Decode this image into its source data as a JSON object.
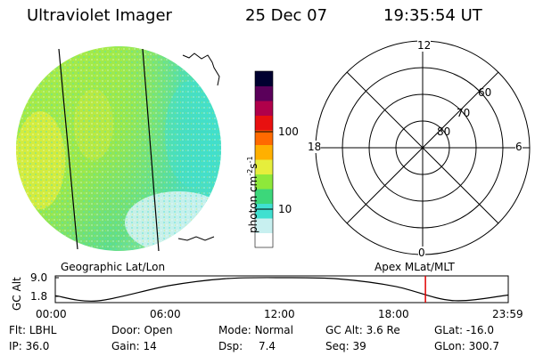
{
  "header": {
    "instrument": "Ultraviolet Imager",
    "date": "25 Dec 07",
    "time": "19:35:54 UT"
  },
  "colorbar": {
    "label_main": "photon cm",
    "label_sup1": "-2",
    "label_mid": "s",
    "label_sup2": "-1",
    "scale": "log",
    "range": [
      2.5,
      600
    ],
    "ticks": [
      {
        "value": 100,
        "label": "100"
      },
      {
        "value": 10,
        "label": "10"
      }
    ],
    "colors": [
      "#ffffff",
      "#c8f0f0",
      "#40e0d0",
      "#3cd77a",
      "#8ee83a",
      "#e6ee3c",
      "#ffb000",
      "#ff6a00",
      "#e81010",
      "#b0004a",
      "#5a005a",
      "#000030"
    ]
  },
  "polar": {
    "mlt_labels": {
      "top": "12",
      "left": "18",
      "right": "6",
      "bottom": "0"
    },
    "lat_labels": [
      "60",
      "70",
      "80"
    ]
  },
  "timeline": {
    "left_label": "Geographic Lat/Lon",
    "right_label": "Apex MLat/MLT",
    "ylabel": "GC Alt",
    "ytick_top": "9.0",
    "ytick_bottom": "1.8",
    "xticks": [
      "00:00",
      "06:00",
      "12:00",
      "18:00",
      "23:59"
    ],
    "marker_color": "#e00000"
  },
  "chart_data": {
    "type": "line",
    "title": "",
    "xlabel": "",
    "ylabel": "GC Alt",
    "ylim": [
      1.8,
      9.0
    ],
    "xlim": [
      "00:00",
      "23:59"
    ],
    "series": [
      {
        "x": [
          "00:00",
          "02:15",
          "06:00",
          "09:00",
          "12:00",
          "15:00",
          "18:00",
          "21:00",
          "23:59"
        ],
        "values": [
          3.4,
          1.8,
          6.5,
          8.7,
          9.0,
          8.6,
          6.3,
          1.9,
          3.6
        ]
      }
    ],
    "marker_time": "19:35:54"
  },
  "params": [
    {
      "label": "Flt:",
      "value": "LBHL"
    },
    {
      "label": "Door:",
      "value": "Open"
    },
    {
      "label": "Mode:",
      "value": "Normal"
    },
    {
      "label": "GC Alt:",
      "value": "3.6 Re"
    },
    {
      "label": "GLat:",
      "value": "-16.0"
    },
    {
      "label": "IP:",
      "value": "36.0"
    },
    {
      "label": "Gain:",
      "value": "14"
    },
    {
      "label": "Dsp:",
      "value": "7.4"
    },
    {
      "label": "Seq:",
      "value": "39"
    },
    {
      "label": "GLon:",
      "value": "300.7"
    }
  ]
}
